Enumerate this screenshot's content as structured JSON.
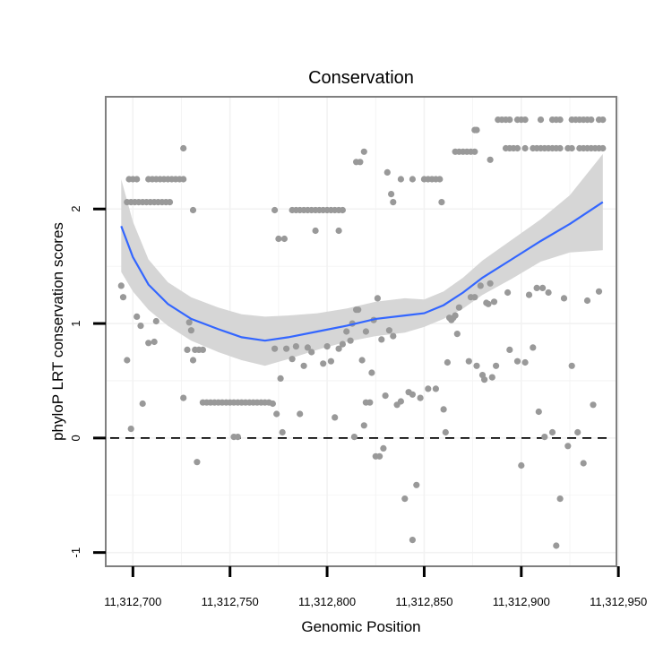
{
  "chart_data": {
    "type": "scatter",
    "title": "Conservation",
    "xlabel": "Genomic Position",
    "ylabel": "phyloP LRT conservation scores",
    "xlim": [
      11312686,
      11312949
    ],
    "ylim": [
      -1.12,
      2.98
    ],
    "x_ticks": [
      11312700,
      11312750,
      11312800,
      11312850,
      11312900,
      11312950
    ],
    "x_tick_labels": [
      "11,312,700",
      "11,312,750",
      "11,312,800",
      "11,312,850",
      "11,312,900",
      "11,312,950"
    ],
    "y_ticks": [
      -1,
      0,
      1,
      2
    ],
    "y_tick_labels": [
      "-1",
      "0",
      "1",
      "2"
    ],
    "reference_line": {
      "y": 0,
      "style": "dashed"
    },
    "colors": {
      "points": "#999999",
      "smooth": "#3366ff",
      "band": "#d4d4d4",
      "grid": "#f2f2f2",
      "frame": "#7f7f7f"
    },
    "series": [
      {
        "name": "phyloP scores",
        "points": [
          [
            11312697,
            2.06
          ],
          [
            11312699,
            2.06
          ],
          [
            11312701,
            2.06
          ],
          [
            11312703,
            2.06
          ],
          [
            11312705,
            2.06
          ],
          [
            11312707,
            2.06
          ],
          [
            11312709,
            2.06
          ],
          [
            11312711,
            2.06
          ],
          [
            11312713,
            2.06
          ],
          [
            11312715,
            2.06
          ],
          [
            11312717,
            2.06
          ],
          [
            11312719,
            2.06
          ],
          [
            11312698,
            2.26
          ],
          [
            11312700,
            2.26
          ],
          [
            11312702,
            2.26
          ],
          [
            11312708,
            2.26
          ],
          [
            11312710,
            2.26
          ],
          [
            11312712,
            2.26
          ],
          [
            11312714,
            2.26
          ],
          [
            11312716,
            2.26
          ],
          [
            11312718,
            2.26
          ],
          [
            11312720,
            2.26
          ],
          [
            11312722,
            2.26
          ],
          [
            11312724,
            2.26
          ],
          [
            11312726,
            2.26
          ],
          [
            11312726,
            2.53
          ],
          [
            11312731,
            1.99
          ],
          [
            11312694,
            1.33
          ],
          [
            11312695,
            1.23
          ],
          [
            11312697,
            0.68
          ],
          [
            11312699,
            0.08
          ],
          [
            11312702,
            1.06
          ],
          [
            11312704,
            0.98
          ],
          [
            11312705,
            0.3
          ],
          [
            11312708,
            0.83
          ],
          [
            11312711,
            0.84
          ],
          [
            11312712,
            1.02
          ],
          [
            11312726,
            0.35
          ],
          [
            11312728,
            0.77
          ],
          [
            11312729,
            1.01
          ],
          [
            11312730,
            0.94
          ],
          [
            11312731,
            0.68
          ],
          [
            11312732,
            0.77
          ],
          [
            11312734,
            0.77
          ],
          [
            11312736,
            0.77
          ],
          [
            11312733,
            -0.21
          ],
          [
            11312736,
            0.31
          ],
          [
            11312738,
            0.31
          ],
          [
            11312740,
            0.31
          ],
          [
            11312742,
            0.31
          ],
          [
            11312744,
            0.31
          ],
          [
            11312746,
            0.31
          ],
          [
            11312748,
            0.31
          ],
          [
            11312750,
            0.31
          ],
          [
            11312752,
            0.31
          ],
          [
            11312754,
            0.31
          ],
          [
            11312756,
            0.31
          ],
          [
            11312758,
            0.31
          ],
          [
            11312760,
            0.31
          ],
          [
            11312762,
            0.31
          ],
          [
            11312764,
            0.31
          ],
          [
            11312766,
            0.31
          ],
          [
            11312768,
            0.31
          ],
          [
            11312770,
            0.31
          ],
          [
            11312752,
            0.01
          ],
          [
            11312754,
            0.01
          ],
          [
            11312772,
            0.3
          ],
          [
            11312773,
            0.78
          ],
          [
            11312774,
            0.21
          ],
          [
            11312776,
            0.52
          ],
          [
            11312777,
            0.05
          ],
          [
            11312779,
            0.78
          ],
          [
            11312773,
            1.99
          ],
          [
            11312775,
            1.74
          ],
          [
            11312778,
            1.74
          ],
          [
            11312782,
            1.99
          ],
          [
            11312784,
            1.99
          ],
          [
            11312786,
            1.99
          ],
          [
            11312788,
            1.99
          ],
          [
            11312790,
            1.99
          ],
          [
            11312792,
            1.99
          ],
          [
            11312794,
            1.99
          ],
          [
            11312796,
            1.99
          ],
          [
            11312798,
            1.99
          ],
          [
            11312800,
            1.99
          ],
          [
            11312802,
            1.99
          ],
          [
            11312804,
            1.99
          ],
          [
            11312806,
            1.99
          ],
          [
            11312808,
            1.99
          ],
          [
            11312794,
            1.81
          ],
          [
            11312806,
            1.81
          ],
          [
            11312782,
            0.69
          ],
          [
            11312784,
            0.8
          ],
          [
            11312786,
            0.21
          ],
          [
            11312788,
            0.63
          ],
          [
            11312790,
            0.79
          ],
          [
            11312792,
            0.75
          ],
          [
            11312798,
            0.65
          ],
          [
            11312800,
            0.8
          ],
          [
            11312802,
            0.67
          ],
          [
            11312804,
            0.18
          ],
          [
            11312806,
            0.78
          ],
          [
            11312808,
            0.82
          ],
          [
            11312810,
            0.93
          ],
          [
            11312812,
            0.85
          ],
          [
            11312813,
            1.0
          ],
          [
            11312814,
            0.01
          ],
          [
            11312815,
            1.12
          ],
          [
            11312816,
            1.12
          ],
          [
            11312818,
            0.68
          ],
          [
            11312819,
            0.11
          ],
          [
            11312820,
            0.93
          ],
          [
            11312815,
            2.41
          ],
          [
            11312817,
            2.41
          ],
          [
            11312819,
            2.5
          ],
          [
            11312820,
            0.31
          ],
          [
            11312822,
            0.31
          ],
          [
            11312823,
            0.57
          ],
          [
            11312824,
            1.03
          ],
          [
            11312825,
            -0.16
          ],
          [
            11312826,
            1.22
          ],
          [
            11312827,
            -0.16
          ],
          [
            11312828,
            0.86
          ],
          [
            11312829,
            -0.09
          ],
          [
            11312830,
            0.37
          ],
          [
            11312832,
            0.94
          ],
          [
            11312834,
            0.89
          ],
          [
            11312836,
            0.29
          ],
          [
            11312838,
            0.32
          ],
          [
            11312840,
            -0.53
          ],
          [
            11312842,
            0.4
          ],
          [
            11312844,
            0.38
          ],
          [
            11312846,
            -0.41
          ],
          [
            11312848,
            0.35
          ],
          [
            11312852,
            0.43
          ],
          [
            11312856,
            0.43
          ],
          [
            11312844,
            -0.89
          ],
          [
            11312831,
            2.32
          ],
          [
            11312833,
            2.13
          ],
          [
            11312834,
            2.06
          ],
          [
            11312838,
            2.26
          ],
          [
            11312844,
            2.26
          ],
          [
            11312850,
            2.26
          ],
          [
            11312852,
            2.26
          ],
          [
            11312854,
            2.26
          ],
          [
            11312856,
            2.26
          ],
          [
            11312858,
            2.26
          ],
          [
            11312859,
            2.06
          ],
          [
            11312860,
            0.25
          ],
          [
            11312861,
            0.05
          ],
          [
            11312862,
            0.66
          ],
          [
            11312863,
            1.05
          ],
          [
            11312864,
            1.03
          ],
          [
            11312865,
            1.05
          ],
          [
            11312866,
            1.07
          ],
          [
            11312867,
            0.91
          ],
          [
            11312868,
            1.14
          ],
          [
            11312866,
            2.5
          ],
          [
            11312868,
            2.5
          ],
          [
            11312870,
            2.5
          ],
          [
            11312872,
            2.5
          ],
          [
            11312874,
            2.5
          ],
          [
            11312876,
            2.5
          ],
          [
            11312876,
            2.69
          ],
          [
            11312877,
            2.69
          ],
          [
            11312873,
            0.67
          ],
          [
            11312874,
            1.23
          ],
          [
            11312876,
            1.23
          ],
          [
            11312877,
            0.63
          ],
          [
            11312879,
            1.33
          ],
          [
            11312880,
            0.55
          ],
          [
            11312881,
            0.51
          ],
          [
            11312882,
            1.18
          ],
          [
            11312883,
            1.17
          ],
          [
            11312884,
            1.35
          ],
          [
            11312885,
            0.53
          ],
          [
            11312886,
            1.19
          ],
          [
            11312887,
            0.63
          ],
          [
            11312884,
            2.43
          ],
          [
            11312888,
            2.78
          ],
          [
            11312890,
            2.78
          ],
          [
            11312892,
            2.78
          ],
          [
            11312894,
            2.78
          ],
          [
            11312898,
            2.78
          ],
          [
            11312900,
            2.78
          ],
          [
            11312902,
            2.78
          ],
          [
            11312910,
            2.78
          ],
          [
            11312892,
            2.53
          ],
          [
            11312894,
            2.53
          ],
          [
            11312896,
            2.53
          ],
          [
            11312898,
            2.53
          ],
          [
            11312902,
            2.53
          ],
          [
            11312906,
            2.53
          ],
          [
            11312908,
            2.53
          ],
          [
            11312910,
            2.53
          ],
          [
            11312912,
            2.53
          ],
          [
            11312914,
            2.53
          ],
          [
            11312916,
            2.53
          ],
          [
            11312918,
            2.53
          ],
          [
            11312920,
            2.53
          ],
          [
            11312924,
            2.53
          ],
          [
            11312926,
            2.53
          ],
          [
            11312930,
            2.53
          ],
          [
            11312932,
            2.53
          ],
          [
            11312934,
            2.53
          ],
          [
            11312936,
            2.53
          ],
          [
            11312938,
            2.53
          ],
          [
            11312940,
            2.53
          ],
          [
            11312942,
            2.53
          ],
          [
            11312916,
            2.78
          ],
          [
            11312918,
            2.78
          ],
          [
            11312920,
            2.78
          ],
          [
            11312926,
            2.78
          ],
          [
            11312928,
            2.78
          ],
          [
            11312930,
            2.78
          ],
          [
            11312932,
            2.78
          ],
          [
            11312934,
            2.78
          ],
          [
            11312936,
            2.78
          ],
          [
            11312940,
            2.78
          ],
          [
            11312942,
            2.78
          ],
          [
            11312893,
            1.27
          ],
          [
            11312894,
            0.77
          ],
          [
            11312898,
            0.67
          ],
          [
            11312900,
            -0.24
          ],
          [
            11312902,
            0.66
          ],
          [
            11312904,
            1.25
          ],
          [
            11312906,
            0.79
          ],
          [
            11312908,
            1.31
          ],
          [
            11312909,
            0.23
          ],
          [
            11312911,
            1.31
          ],
          [
            11312912,
            0.01
          ],
          [
            11312914,
            1.27
          ],
          [
            11312916,
            0.05
          ],
          [
            11312918,
            -0.94
          ],
          [
            11312920,
            -0.53
          ],
          [
            11312922,
            1.22
          ],
          [
            11312924,
            -0.07
          ],
          [
            11312926,
            0.63
          ],
          [
            11312929,
            0.05
          ],
          [
            11312932,
            -0.22
          ],
          [
            11312934,
            1.2
          ],
          [
            11312937,
            0.29
          ],
          [
            11312940,
            1.28
          ]
        ]
      }
    ],
    "smooth": {
      "x": [
        11312694,
        11312700,
        11312708,
        11312718,
        11312730,
        11312744,
        11312756,
        11312768,
        11312780,
        11312795,
        11312810,
        11312825,
        11312840,
        11312850,
        11312860,
        11312870,
        11312880,
        11312895,
        11312910,
        11312925,
        11312942
      ],
      "y": [
        1.85,
        1.58,
        1.34,
        1.17,
        1.04,
        0.95,
        0.88,
        0.85,
        0.88,
        0.93,
        0.98,
        1.04,
        1.07,
        1.09,
        1.16,
        1.27,
        1.4,
        1.56,
        1.72,
        1.87,
        2.06
      ],
      "lo": [
        1.45,
        1.28,
        1.12,
        0.98,
        0.85,
        0.75,
        0.68,
        0.63,
        0.69,
        0.77,
        0.84,
        0.89,
        0.92,
        0.97,
        1.04,
        1.13,
        1.25,
        1.39,
        1.54,
        1.62,
        1.64
      ],
      "hi": [
        2.26,
        1.89,
        1.56,
        1.36,
        1.23,
        1.14,
        1.08,
        1.06,
        1.07,
        1.09,
        1.13,
        1.19,
        1.22,
        1.21,
        1.28,
        1.4,
        1.55,
        1.73,
        1.91,
        2.12,
        2.48
      ]
    }
  }
}
